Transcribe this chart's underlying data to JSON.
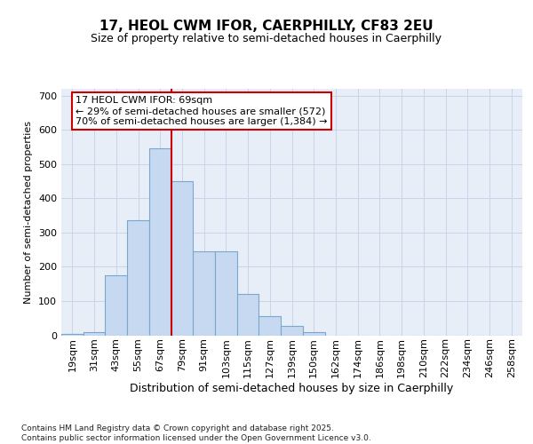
{
  "title1": "17, HEOL CWM IFOR, CAERPHILLY, CF83 2EU",
  "title2": "Size of property relative to semi-detached houses in Caerphilly",
  "xlabel": "Distribution of semi-detached houses by size in Caerphilly",
  "ylabel": "Number of semi-detached properties",
  "categories": [
    "19sqm",
    "31sqm",
    "43sqm",
    "55sqm",
    "67sqm",
    "79sqm",
    "91sqm",
    "103sqm",
    "115sqm",
    "127sqm",
    "139sqm",
    "150sqm",
    "162sqm",
    "174sqm",
    "186sqm",
    "198sqm",
    "210sqm",
    "222sqm",
    "234sqm",
    "246sqm",
    "258sqm"
  ],
  "values": [
    5,
    10,
    175,
    335,
    545,
    450,
    245,
    245,
    120,
    55,
    28,
    10,
    0,
    0,
    0,
    0,
    0,
    0,
    0,
    0,
    0
  ],
  "bar_color": "#c6d9f0",
  "bar_edge_color": "#7aa8cc",
  "grid_color": "#c8d4e8",
  "background_color": "#e8eef8",
  "ref_line_color": "#cc0000",
  "ref_line_x": 4.5,
  "annotation_text": "17 HEOL CWM IFOR: 69sqm\n← 29% of semi-detached houses are smaller (572)\n70% of semi-detached houses are larger (1,384) →",
  "footer": "Contains HM Land Registry data © Crown copyright and database right 2025.\nContains public sector information licensed under the Open Government Licence v3.0.",
  "ylim_max": 720,
  "yticks": [
    0,
    100,
    200,
    300,
    400,
    500,
    600,
    700
  ],
  "title1_fontsize": 11,
  "title2_fontsize": 9,
  "ylabel_fontsize": 8,
  "xlabel_fontsize": 9,
  "tick_fontsize": 8,
  "ann_fontsize": 8
}
